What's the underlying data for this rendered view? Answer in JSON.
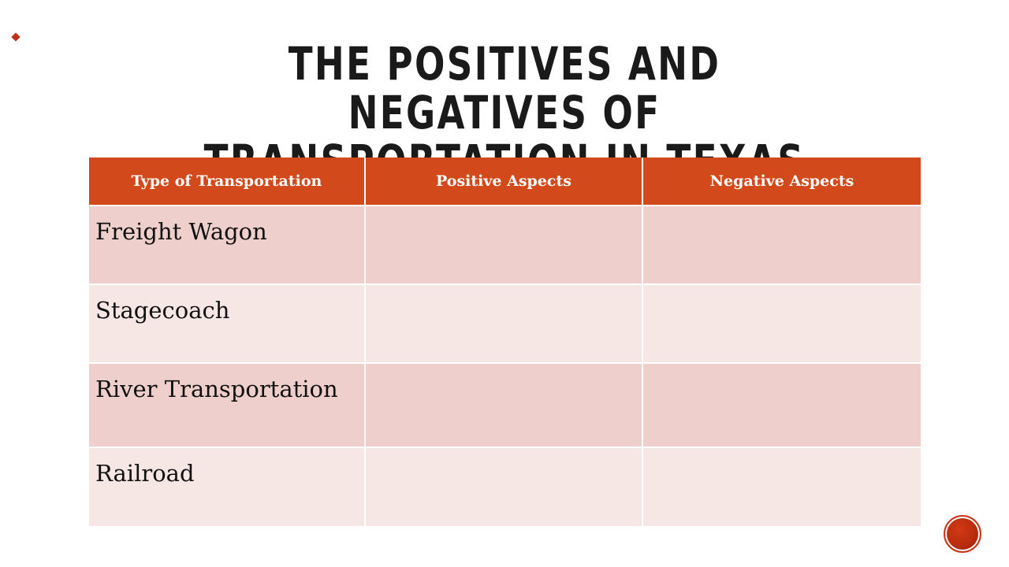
{
  "slide": {
    "title": "THE POSITIVES AND NEGATIVES OF TRANSPORTATION IN TEXAS"
  },
  "table": {
    "headers": [
      "Type of Transportation",
      "Positive Aspects",
      "Negative Aspects"
    ],
    "rows": [
      {
        "type": "Freight Wagon",
        "positive": "",
        "negative": ""
      },
      {
        "type": "Stagecoach",
        "positive": "",
        "negative": ""
      },
      {
        "type": "River Transportation",
        "positive": "",
        "negative": ""
      },
      {
        "type": "Railroad",
        "positive": "",
        "negative": ""
      }
    ]
  },
  "colors": {
    "header_bg": "#d24a1b",
    "row_dark": "#eecfcb",
    "row_light": "#f6e7e5",
    "accent": "#c0311a"
  }
}
